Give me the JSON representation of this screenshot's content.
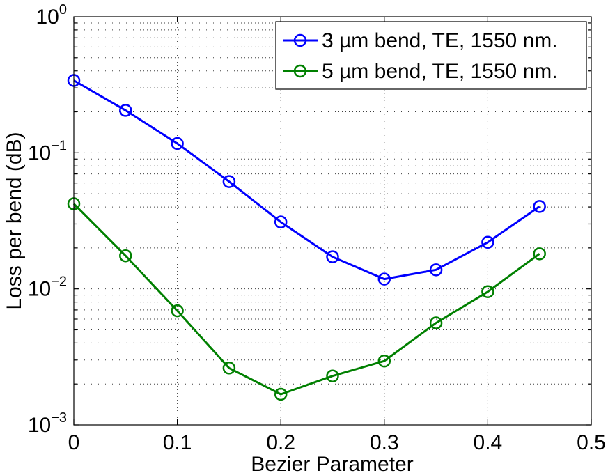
{
  "chart_data": {
    "type": "line",
    "xlabel": "Bezier Parameter",
    "ylabel": "Loss per bend (dB)",
    "xlim": [
      0,
      0.5
    ],
    "ylim": [
      0.001,
      1
    ],
    "yscale": "log",
    "grid": true,
    "legend_position": "top-right",
    "x_ticks": [
      "0",
      "0.1",
      "0.2",
      "0.3",
      "0.4",
      "0.5"
    ],
    "y_ticks": [
      {
        "base": "10",
        "exp": "0"
      },
      {
        "base": "10",
        "exp": "−1"
      },
      {
        "base": "10",
        "exp": "−2"
      },
      {
        "base": "10",
        "exp": "−3"
      }
    ],
    "x": [
      0,
      0.05,
      0.1,
      0.15,
      0.2,
      0.25,
      0.3,
      0.35,
      0.4,
      0.45
    ],
    "series": [
      {
        "name": "3 µm bend, TE, 1550 nm.",
        "color": "#0000ff",
        "marker": "circle",
        "values": [
          0.34,
          0.205,
          0.117,
          0.0615,
          0.031,
          0.0172,
          0.0118,
          0.0138,
          0.022,
          0.0403
        ]
      },
      {
        "name": "5 µm bend, TE, 1550 nm.",
        "color": "#008000",
        "marker": "circle",
        "values": [
          0.0422,
          0.0175,
          0.0069,
          0.00262,
          0.00168,
          0.00229,
          0.00295,
          0.00562,
          0.00953,
          0.0181
        ]
      }
    ]
  }
}
